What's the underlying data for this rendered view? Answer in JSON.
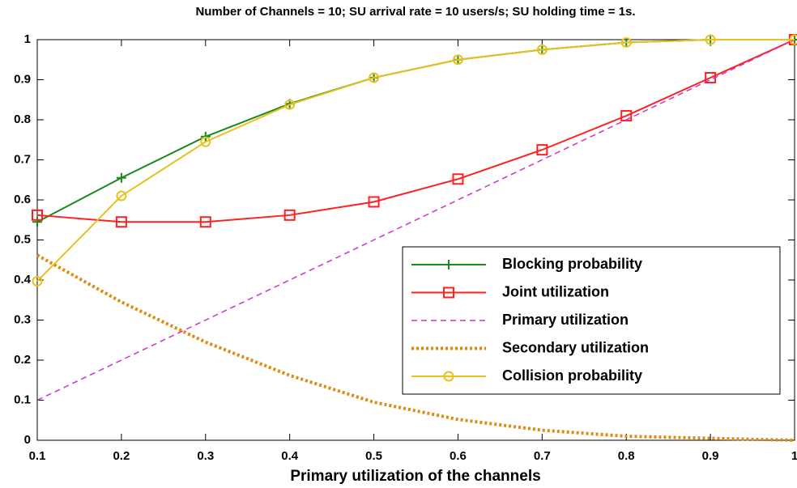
{
  "chart_data": {
    "type": "line",
    "title": "Number of Channels = 10; SU arrival rate = 10 users/s; SU holding time = 1s.",
    "x_label": "Primary utilization of the channels",
    "x": [
      0.1,
      0.2,
      0.3,
      0.4,
      0.5,
      0.6,
      0.7,
      0.8,
      0.9,
      1
    ],
    "series": [
      {
        "name": "Blocking probability",
        "color": "#1a8a1a",
        "linestyle": "solid",
        "marker": "plus",
        "values": [
          0.545,
          0.655,
          0.758,
          0.84,
          0.905,
          0.95,
          0.975,
          0.993,
          1.0,
          1.0
        ]
      },
      {
        "name": "Joint utilization",
        "color": "#ff2020",
        "linestyle": "solid",
        "marker": "square",
        "values": [
          0.562,
          0.545,
          0.545,
          0.562,
          0.595,
          0.652,
          0.725,
          0.81,
          0.905,
          1.0
        ]
      },
      {
        "name": "Primary utilization",
        "color": "#cc33cc",
        "linestyle": "dashed",
        "marker": "none",
        "values": [
          0.1,
          0.2,
          0.3,
          0.4,
          0.5,
          0.6,
          0.7,
          0.8,
          0.9,
          1.0
        ]
      },
      {
        "name": "Secondary utilization",
        "color": "#e08a10",
        "linestyle": "dotted",
        "marker": "none",
        "values": [
          0.462,
          0.345,
          0.245,
          0.162,
          0.095,
          0.052,
          0.025,
          0.01,
          0.005,
          0.0
        ]
      },
      {
        "name": "Collision probability",
        "color": "#e8c020",
        "linestyle": "solid",
        "marker": "circle",
        "values": [
          0.397,
          0.61,
          0.745,
          0.838,
          0.905,
          0.95,
          0.975,
          0.993,
          1.0,
          1.0
        ]
      }
    ],
    "xlim": [
      0.1,
      1
    ],
    "ylim": [
      0,
      1
    ],
    "xticks": [
      0.1,
      0.2,
      0.3,
      0.4,
      0.5,
      0.6,
      0.7,
      0.8,
      0.9,
      1
    ],
    "yticks": [
      0,
      0.1,
      0.2,
      0.3,
      0.4,
      0.5,
      0.6,
      0.7,
      0.8,
      0.9,
      1
    ],
    "grid": false,
    "legend": "lower right"
  }
}
